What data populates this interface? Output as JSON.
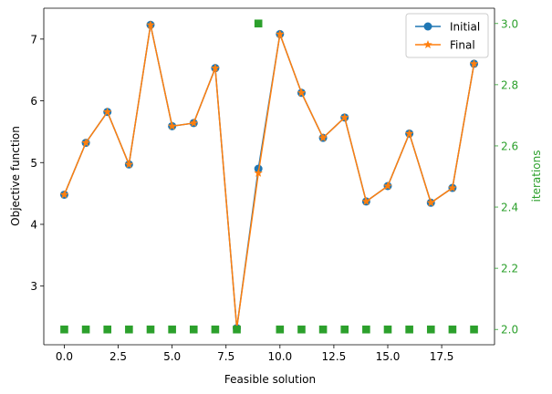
{
  "chart_data": {
    "type": "line",
    "xlabel": "Feasible solution",
    "ylabel": "Objective function",
    "y2label": "iterations",
    "xlim": [
      -0.95,
      19.95
    ],
    "ylim": [
      2.05,
      7.5
    ],
    "y2lim": [
      1.95,
      3.05
    ],
    "x_ticks": [
      0.0,
      2.5,
      5.0,
      7.5,
      10.0,
      12.5,
      15.0,
      17.5
    ],
    "x_tick_labels": [
      "0.0",
      "2.5",
      "5.0",
      "7.5",
      "10.0",
      "12.5",
      "15.0",
      "17.5"
    ],
    "y_ticks": [
      3,
      4,
      5,
      6,
      7
    ],
    "y_tick_labels": [
      "3",
      "4",
      "5",
      "6",
      "7"
    ],
    "y2_ticks": [
      2.0,
      2.2,
      2.4,
      2.6,
      2.8,
      3.0
    ],
    "y2_tick_labels": [
      "2.0",
      "2.2",
      "2.4",
      "2.6",
      "2.8",
      "3.0"
    ],
    "legend_position": "top-right",
    "grid": false,
    "x": [
      0,
      1,
      2,
      3,
      4,
      5,
      6,
      7,
      8,
      9,
      10,
      11,
      12,
      13,
      14,
      15,
      16,
      17,
      18,
      19
    ],
    "series": [
      {
        "name": "Initial",
        "axis": "left",
        "marker": "circle",
        "line": true,
        "color": "#1f77b4",
        "values": [
          4.48,
          5.32,
          5.82,
          4.97,
          7.23,
          5.59,
          5.64,
          6.53,
          2.32,
          4.9,
          7.08,
          6.13,
          5.4,
          5.73,
          4.37,
          4.62,
          5.47,
          4.35,
          4.59,
          6.6
        ]
      },
      {
        "name": "Final",
        "axis": "left",
        "marker": "star",
        "line": true,
        "color": "#ff7f0e",
        "values": [
          4.48,
          5.32,
          5.82,
          4.97,
          7.23,
          5.59,
          5.64,
          6.53,
          2.32,
          4.83,
          7.08,
          6.13,
          5.4,
          5.73,
          4.37,
          4.62,
          5.47,
          4.35,
          4.59,
          6.6
        ]
      },
      {
        "axis": "right",
        "marker": "square",
        "line": false,
        "color": "#2ca02c",
        "values": [
          2,
          2,
          2,
          2,
          2,
          2,
          2,
          2,
          2,
          3,
          2,
          2,
          2,
          2,
          2,
          2,
          2,
          2,
          2,
          2
        ]
      }
    ]
  }
}
